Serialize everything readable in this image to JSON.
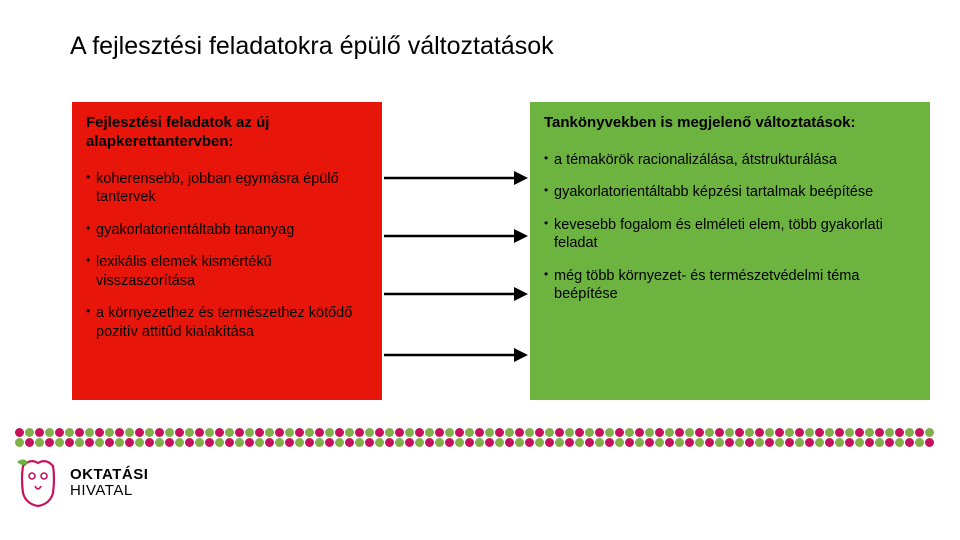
{
  "title": "A fejlesztési feladatokra épülő változtatások",
  "leftBox": {
    "heading": "Fejlesztési feladatok az új alapkerettantervben:",
    "bullets": [
      "koherensebb, jobban egymásra épülő tantervek",
      "gyakorlatorientáltabb tananyag",
      "lexikális elemek kismértékű visszaszorítása",
      "a környezethez és természethez kötődő pozitív attitűd kialakítása"
    ],
    "bgColor": "#e8160a"
  },
  "rightBox": {
    "heading": "Tankönyvekben is megjelenő változtatások:",
    "bullets": [
      "a témakörök racionalizálása, átstrukturálása",
      "gyakorlatorientáltabb képzési tartalmak beépítése",
      "kevesebb fogalom és elméleti elem, több gyakorlati feladat",
      "még több környezet- és természetvédelmi téma beépítése"
    ],
    "bgColor": "#6db33f"
  },
  "arrows": {
    "count": 4,
    "color": "#000000",
    "positionsY": [
      18,
      76,
      134,
      195
    ]
  },
  "decorBand": {
    "colorA": "#c4125c",
    "colorB": "#7fb04a",
    "dotSize": 9,
    "rows": 2,
    "cols": 92
  },
  "logo": {
    "line1": "OKTATÁSI",
    "line2": "HIVATAL",
    "leafColor": "#6db33f",
    "ringColor": "#c4125c"
  }
}
